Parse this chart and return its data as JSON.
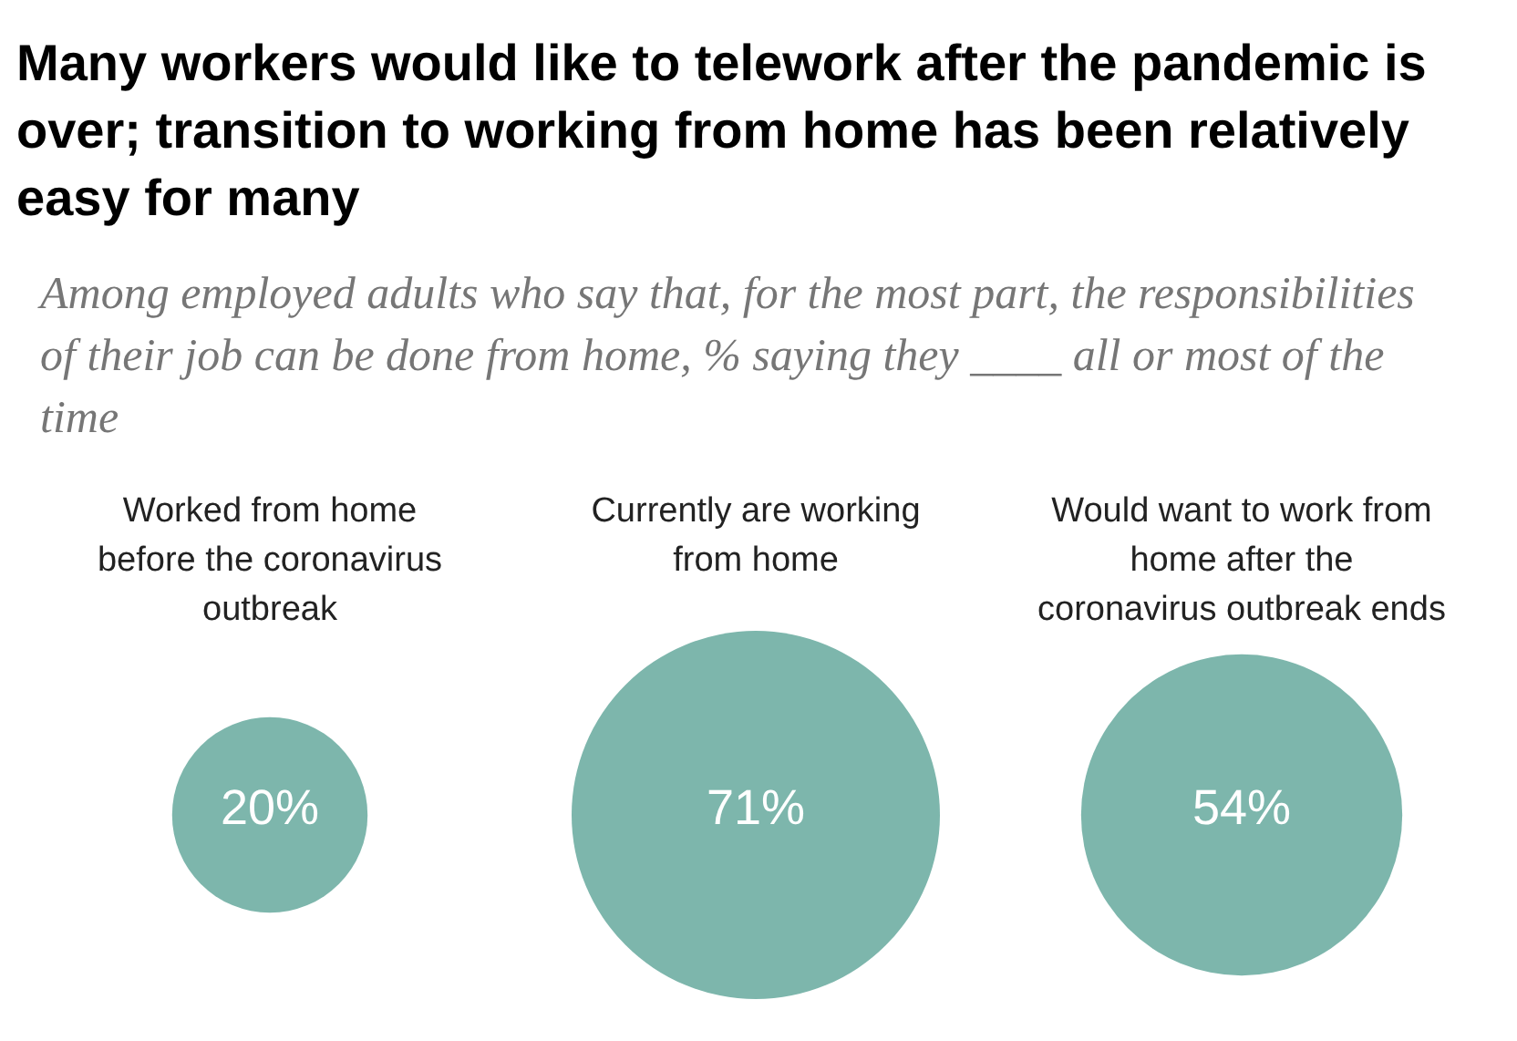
{
  "chart_data": {
    "type": "other",
    "title": "Many workers would like to telework after the pandemic is over; transition to working from home has been relatively easy for many",
    "subtitle": "Among employed adults who say that, for the most part, the responsibilities of their job can be done from home, % saying they ____ all or most of the time",
    "categories": [
      "Worked from home before the coronavirus outbreak",
      "Currently are working from home",
      "Would want to work from home after the coronavirus outbreak ends"
    ],
    "values": [
      20,
      71,
      54
    ],
    "value_labels": [
      "20%",
      "71%",
      "54%"
    ],
    "color": "#7db6ac"
  }
}
